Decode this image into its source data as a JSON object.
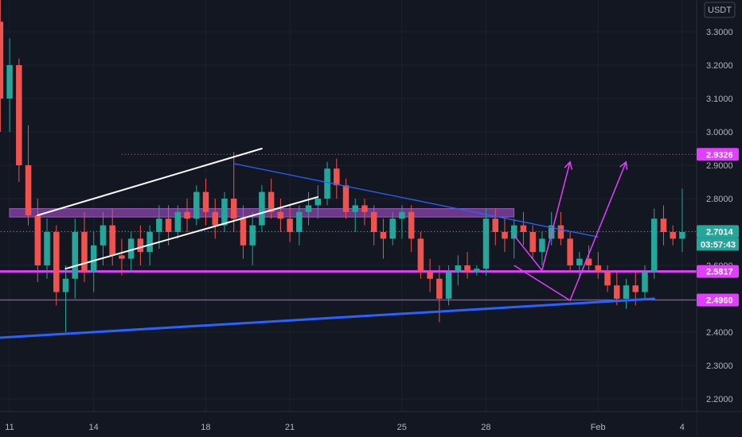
{
  "chart_data": {
    "type": "candlestick",
    "currency": "USDT",
    "y_range": [
      2.14,
      3.42
    ],
    "y_ticks": [
      "3.3000",
      "3.2000",
      "3.1000",
      "3.0000",
      "2.9000",
      "2.8000",
      "2.7000",
      "2.6000",
      "2.5000",
      "2.4000",
      "2.3000",
      "2.2000"
    ],
    "x_tick_labels": [
      "11",
      "14",
      "18",
      "21",
      "25",
      "28",
      "Feb",
      "4"
    ],
    "price_tags": [
      {
        "value": "2.9326",
        "label": "2.9326",
        "color": "#e040fb"
      },
      {
        "value": "2.7014",
        "label": "2.7014",
        "color": "#26a69a"
      },
      {
        "value": "2.5817",
        "label": "2.5817",
        "color": "#e040fb"
      },
      {
        "value": "2.4960",
        "label": "2.4960",
        "color": "#e040fb"
      }
    ],
    "countdown": "03:57:43",
    "candle_colors": {
      "up": "#26a69a",
      "down": "#ef5350"
    },
    "annotation_colors": {
      "horizontal": "#e040fb",
      "trendline": "#2962ff",
      "channel": "#ffffff",
      "zone": "#7b3f99"
    },
    "candles": [
      [
        3.33,
        3.4,
        3.0,
        3.1
      ],
      [
        3.1,
        3.28,
        3.0,
        3.2
      ],
      [
        3.2,
        3.22,
        2.85,
        2.9
      ],
      [
        2.9,
        3.02,
        2.72,
        2.75
      ],
      [
        2.75,
        2.8,
        2.55,
        2.6
      ],
      [
        2.6,
        2.74,
        2.56,
        2.7
      ],
      [
        2.7,
        2.72,
        2.48,
        2.52
      ],
      [
        2.52,
        2.6,
        2.4,
        2.56
      ],
      [
        2.56,
        2.74,
        2.5,
        2.7
      ],
      [
        2.7,
        2.76,
        2.55,
        2.58
      ],
      [
        2.58,
        2.7,
        2.52,
        2.66
      ],
      [
        2.66,
        2.76,
        2.6,
        2.72
      ],
      [
        2.72,
        2.77,
        2.6,
        2.63
      ],
      [
        2.63,
        2.68,
        2.57,
        2.62
      ],
      [
        2.62,
        2.7,
        2.58,
        2.68
      ],
      [
        2.68,
        2.72,
        2.6,
        2.64
      ],
      [
        2.64,
        2.72,
        2.6,
        2.7
      ],
      [
        2.7,
        2.78,
        2.65,
        2.74
      ],
      [
        2.74,
        2.78,
        2.66,
        2.7
      ],
      [
        2.7,
        2.78,
        2.68,
        2.76
      ],
      [
        2.76,
        2.8,
        2.7,
        2.74
      ],
      [
        2.74,
        2.84,
        2.72,
        2.82
      ],
      [
        2.82,
        2.86,
        2.72,
        2.76
      ],
      [
        2.76,
        2.8,
        2.68,
        2.72
      ],
      [
        2.72,
        2.82,
        2.7,
        2.8
      ],
      [
        2.8,
        2.94,
        2.7,
        2.74
      ],
      [
        2.74,
        2.78,
        2.62,
        2.66
      ],
      [
        2.66,
        2.76,
        2.6,
        2.72
      ],
      [
        2.72,
        2.84,
        2.7,
        2.82
      ],
      [
        2.82,
        2.86,
        2.74,
        2.76
      ],
      [
        2.76,
        2.8,
        2.7,
        2.74
      ],
      [
        2.74,
        2.78,
        2.67,
        2.7
      ],
      [
        2.7,
        2.78,
        2.66,
        2.76
      ],
      [
        2.76,
        2.82,
        2.72,
        2.78
      ],
      [
        2.78,
        2.84,
        2.74,
        2.8
      ],
      [
        2.8,
        2.91,
        2.78,
        2.89
      ],
      [
        2.89,
        2.92,
        2.8,
        2.84
      ],
      [
        2.84,
        2.86,
        2.74,
        2.76
      ],
      [
        2.76,
        2.8,
        2.7,
        2.78
      ],
      [
        2.78,
        2.8,
        2.72,
        2.76
      ],
      [
        2.76,
        2.78,
        2.66,
        2.7
      ],
      [
        2.7,
        2.74,
        2.62,
        2.68
      ],
      [
        2.68,
        2.76,
        2.66,
        2.74
      ],
      [
        2.74,
        2.78,
        2.68,
        2.76
      ],
      [
        2.76,
        2.78,
        2.64,
        2.68
      ],
      [
        2.68,
        2.7,
        2.56,
        2.58
      ],
      [
        2.58,
        2.62,
        2.52,
        2.56
      ],
      [
        2.56,
        2.6,
        2.43,
        2.5
      ],
      [
        2.5,
        2.6,
        2.48,
        2.58
      ],
      [
        2.58,
        2.63,
        2.54,
        2.6
      ],
      [
        2.6,
        2.64,
        2.56,
        2.58
      ],
      [
        2.58,
        2.6,
        2.57,
        2.59
      ],
      [
        2.59,
        2.77,
        2.57,
        2.74
      ],
      [
        2.74,
        2.77,
        2.66,
        2.7
      ],
      [
        2.7,
        2.74,
        2.64,
        2.68
      ],
      [
        2.68,
        2.74,
        2.62,
        2.72
      ],
      [
        2.72,
        2.76,
        2.66,
        2.7
      ],
      [
        2.7,
        2.72,
        2.62,
        2.64
      ],
      [
        2.64,
        2.7,
        2.6,
        2.68
      ],
      [
        2.68,
        2.76,
        2.66,
        2.72
      ],
      [
        2.72,
        2.76,
        2.66,
        2.68
      ],
      [
        2.68,
        2.7,
        2.58,
        2.6
      ],
      [
        2.6,
        2.64,
        2.56,
        2.62
      ],
      [
        2.62,
        2.66,
        2.58,
        2.6
      ],
      [
        2.6,
        2.64,
        2.56,
        2.58
      ],
      [
        2.58,
        2.6,
        2.52,
        2.54
      ],
      [
        2.54,
        2.58,
        2.48,
        2.5
      ],
      [
        2.5,
        2.56,
        2.47,
        2.54
      ],
      [
        2.54,
        2.58,
        2.48,
        2.52
      ],
      [
        2.52,
        2.6,
        2.5,
        2.58
      ],
      [
        2.58,
        2.77,
        2.56,
        2.74
      ],
      [
        2.74,
        2.78,
        2.66,
        2.7
      ],
      [
        2.7,
        2.72,
        2.66,
        2.68
      ],
      [
        2.68,
        2.83,
        2.64,
        2.7
      ]
    ],
    "channel_lines": [
      {
        "x1": "2022-01-12",
        "y1": 2.75,
        "x2": "2022-01-20",
        "y2": 2.95
      },
      {
        "x1": "2022-01-13",
        "y1": 2.59,
        "x2": "2022-01-22",
        "y2": 2.805
      }
    ],
    "trendlines": [
      {
        "x1": "2022-01-10",
        "y1": 2.38,
        "x2": "2022-02-03",
        "y2": 2.5,
        "width": 3
      },
      {
        "x1": "2022-01-19",
        "y1": 2.905,
        "x2": "2022-02-01",
        "y2": 2.685,
        "width": 1.3
      }
    ],
    "zone": {
      "x1": "2022-01-11",
      "x2": "2022-01-29",
      "y_top": 2.77,
      "y_bottom": 2.745
    },
    "horizontal_lines": [
      {
        "y": 2.9326,
        "style": "dotted",
        "x_start": "2022-01-15"
      },
      {
        "y": 2.7014,
        "style": "dotted",
        "x_start": "2022-01-10"
      },
      {
        "y": 2.5817,
        "style": "solid",
        "width": 3,
        "x_start": "2022-01-10"
      },
      {
        "y": 2.496,
        "style": "solid",
        "width": 1,
        "x_start": "2022-01-10"
      }
    ],
    "projections": [
      {
        "points": [
          [
            "2022-01-29",
            2.69
          ],
          [
            "2022-01-30",
            2.585
          ],
          [
            "2022-01-31",
            2.91
          ]
        ]
      },
      {
        "points": [
          [
            "2022-01-29",
            2.6
          ],
          [
            "2022-01-31",
            2.495
          ],
          [
            "2022-02-02",
            2.91
          ]
        ]
      }
    ]
  }
}
